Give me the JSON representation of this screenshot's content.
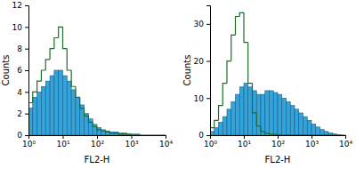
{
  "chart_data": [
    {
      "type": "histogram",
      "xlabel": "FL2-H",
      "ylabel": "Counts",
      "log": "x",
      "xlim": [
        1,
        10000
      ],
      "xticks": [
        {
          "value": 1,
          "label": "10⁰"
        },
        {
          "value": 10,
          "label": "10¹"
        },
        {
          "value": 100,
          "label": "10²"
        },
        {
          "value": 1000,
          "label": "10³"
        },
        {
          "value": 10000,
          "label": "10⁴"
        }
      ],
      "ylim": [
        0,
        12
      ],
      "yticks": [
        0,
        2,
        4,
        6,
        8,
        10,
        12
      ],
      "bins": [
        1,
        1.33,
        1.78,
        2.37,
        3.16,
        4.22,
        5.62,
        7.5,
        10,
        13.3,
        17.8,
        23.7,
        31.6,
        42.2,
        56.2,
        75,
        100,
        133,
        178,
        237,
        316,
        422,
        562,
        750,
        1000,
        1330,
        1780,
        2370,
        3160,
        4220,
        5620,
        7500,
        10000
      ],
      "series": [
        {
          "type": "bar",
          "color": "#33a3dc",
          "values": [
            2.5,
            3.5,
            4,
            4.5,
            5,
            5.5,
            6,
            6,
            5.5,
            5,
            4.2,
            3.5,
            2.8,
            2,
            1.5,
            1,
            0.7,
            0.5,
            0.4,
            0.3,
            0.3,
            0.2,
            0.2,
            0.1,
            0.1,
            0.1,
            0,
            0,
            0,
            0,
            0,
            0
          ]
        },
        {
          "type": "line",
          "color": "#1f6b2a",
          "values": [
            3,
            4,
            5,
            6,
            7,
            8,
            9,
            10,
            8,
            6,
            4.5,
            3.5,
            2.5,
            1.8,
            1.2,
            0.8,
            0.5,
            0.4,
            0.3,
            0.2,
            0.2,
            0.1,
            0.1,
            0.1,
            0,
            0,
            0,
            0,
            0,
            0,
            0,
            0
          ]
        }
      ]
    },
    {
      "type": "histogram",
      "xlabel": "FL2-H",
      "ylabel": "Counts",
      "log": "x",
      "xlim": [
        1,
        10000
      ],
      "xticks": [
        {
          "value": 1,
          "label": "10⁰"
        },
        {
          "value": 10,
          "label": "10¹"
        },
        {
          "value": 100,
          "label": "10²"
        },
        {
          "value": 1000,
          "label": "10³"
        },
        {
          "value": 10000,
          "label": "10⁴"
        }
      ],
      "ylim": [
        0,
        35
      ],
      "yticks": [
        0,
        10,
        20,
        30
      ],
      "bins": [
        1,
        1.33,
        1.78,
        2.37,
        3.16,
        4.22,
        5.62,
        7.5,
        10,
        13.3,
        17.8,
        23.7,
        31.6,
        42.2,
        56.2,
        75,
        100,
        133,
        178,
        237,
        316,
        422,
        562,
        750,
        1000,
        1330,
        1780,
        2370,
        3160,
        4220,
        5620,
        7500,
        10000
      ],
      "series": [
        {
          "type": "bar",
          "color": "#33a3dc",
          "values": [
            1,
            2,
            3.5,
            5,
            7,
            9,
            11,
            13,
            14,
            13,
            12,
            11,
            11,
            12,
            12,
            11.5,
            11,
            10,
            9,
            8,
            7,
            6,
            5,
            4,
            3,
            2.2,
            1.5,
            1,
            0.6,
            0.3,
            0.1,
            0
          ]
        },
        {
          "type": "line",
          "color": "#1f6b2a",
          "values": [
            2,
            4,
            8,
            14,
            20,
            27,
            32,
            33,
            25,
            14,
            6,
            2.5,
            1,
            0.5,
            0.3,
            0.2,
            0.1,
            0,
            0,
            0,
            0,
            0,
            0,
            0,
            0,
            0,
            0,
            0,
            0,
            0,
            0,
            0
          ]
        }
      ]
    }
  ]
}
